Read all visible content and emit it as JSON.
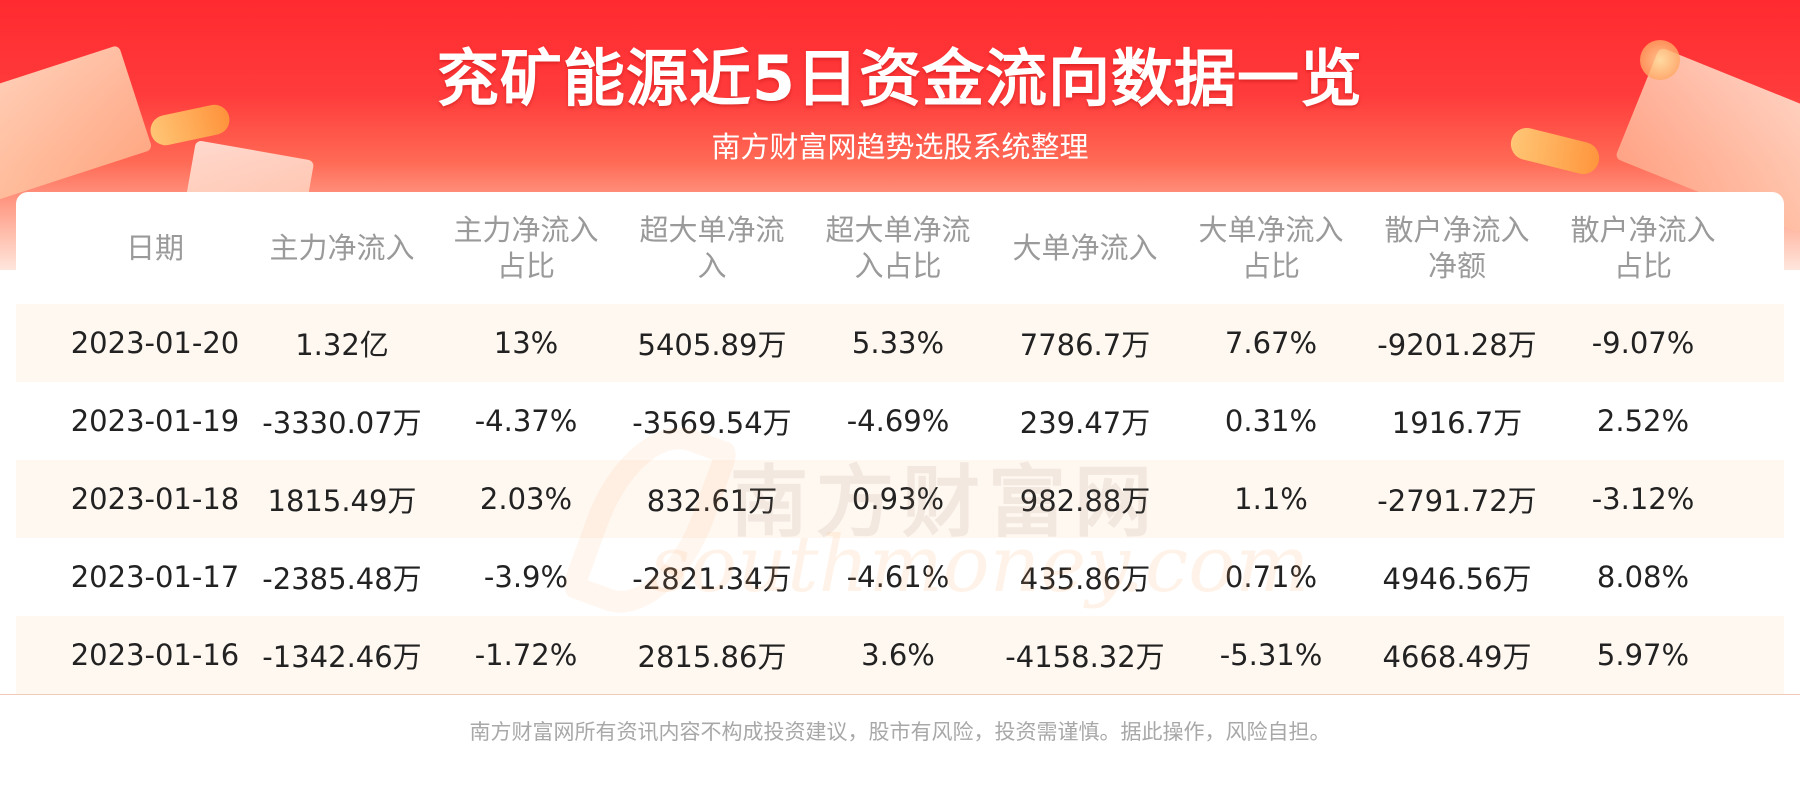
{
  "header": {
    "title": "兖矿能源近5日资金流向数据一览",
    "subtitle": "南方财富网趋势选股系统整理"
  },
  "watermark": {
    "cn": "南方财富网",
    "en": "southmoney.com"
  },
  "table": {
    "columns": [
      "日期",
      "主力净流入",
      "主力净流入\n占比",
      "超大单净流\n入",
      "超大单净流\n入占比",
      "大单净流入",
      "大单净流入\n占比",
      "散户净流入\n净额",
      "散户净流入\n占比"
    ],
    "rows": [
      [
        "2023-01-20",
        "1.32亿",
        "13%",
        "5405.89万",
        "5.33%",
        "7786.7万",
        "7.67%",
        "-9201.28万",
        "-9.07%"
      ],
      [
        "2023-01-19",
        "-3330.07万",
        "-4.37%",
        "-3569.54万",
        "-4.69%",
        "239.47万",
        "0.31%",
        "1916.7万",
        "2.52%"
      ],
      [
        "2023-01-18",
        "1815.49万",
        "2.03%",
        "832.61万",
        "0.93%",
        "982.88万",
        "1.1%",
        "-2791.72万",
        "-3.12%"
      ],
      [
        "2023-01-17",
        "-2385.48万",
        "-3.9%",
        "-2821.34万",
        "-4.61%",
        "435.86万",
        "0.71%",
        "4946.56万",
        "8.08%"
      ],
      [
        "2023-01-16",
        "-1342.46万",
        "-1.72%",
        "2815.86万",
        "3.6%",
        "-4158.32万",
        "-5.31%",
        "4668.49万",
        "5.97%"
      ]
    ]
  },
  "footer": {
    "disclaimer": "南方财富网所有资讯内容不构成投资建议，股市有风险，投资需谨慎。据此操作，风险自担。"
  }
}
